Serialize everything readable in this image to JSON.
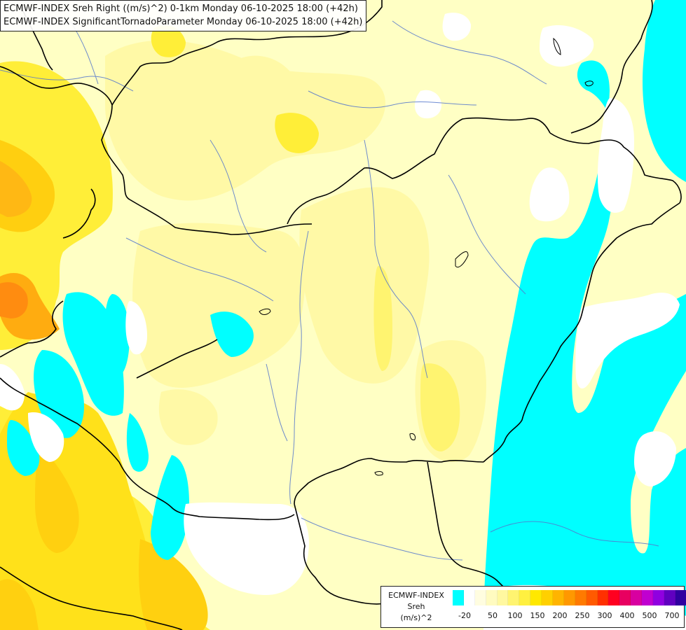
{
  "titles": {
    "line1": "ECMWF-INDEX Sreh Right ((m/s)^2) 0-1km Monday 06-10-2025 18:00 (+42h)",
    "line2": "ECMWF-INDEX SignificantTornadoParameter Monday 06-10-2025 18:00 (+42h)"
  },
  "legend": {
    "model": "ECMWF-INDEX",
    "variable": "Sreh",
    "unit": "(m/s)^2",
    "ticks": [
      "-20",
      "50",
      "100",
      "150",
      "200",
      "250",
      "300",
      "400",
      "500",
      "700"
    ],
    "colors": [
      "#00ffff",
      "#ffffff",
      "#fffde0",
      "#fffbc0",
      "#fff8a0",
      "#fff470",
      "#fff040",
      "#ffe800",
      "#ffd000",
      "#ffb400",
      "#ff9800",
      "#ff7a00",
      "#ff5a00",
      "#ff3000",
      "#ff0020",
      "#e80060",
      "#d800a0",
      "#c000d0",
      "#9000e0",
      "#6000c0",
      "#3000a0",
      "#000070"
    ]
  },
  "colors": {
    "cyan": "#00ffff",
    "white": "#ffffff",
    "pale_yellow": "#ffffc0",
    "light_yellow": "#fff9a0",
    "yellow": "#ffee38",
    "gold": "#ffd010",
    "orange": "#ffae10",
    "dark_orange": "#ff8a10",
    "border": "#000000",
    "river": "#5577cc"
  }
}
